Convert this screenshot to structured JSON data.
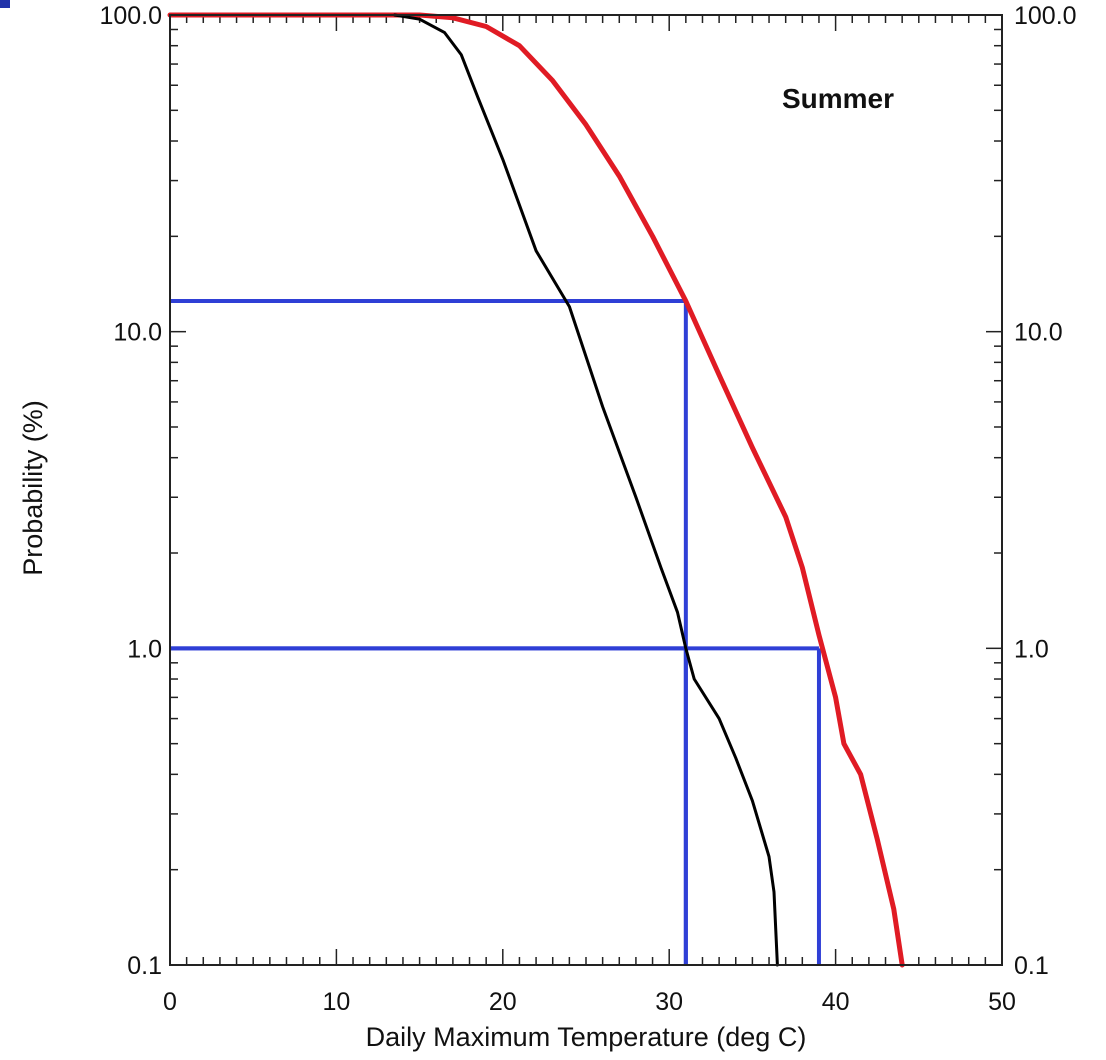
{
  "chart_data": {
    "type": "line",
    "title": "",
    "xlabel": "Daily Maximum Temperature (deg C)",
    "ylabel": "Probability (%)",
    "annotation": "Summer",
    "xlim": [
      0,
      50
    ],
    "ylim": [
      0.1,
      100
    ],
    "yscale": "log",
    "x_ticks": [
      0,
      10,
      20,
      30,
      40,
      50
    ],
    "x_tick_labels": [
      "0",
      "10",
      "20",
      "30",
      "40",
      "50"
    ],
    "y_ticks": [
      0.1,
      1,
      10,
      100
    ],
    "y_tick_labels": [
      "0.1",
      "1.0",
      "10.0",
      "100.0"
    ],
    "y_tick_labels_right": [
      "0.1",
      "1.0",
      "10.0",
      "100.0"
    ],
    "grid": false,
    "legend": "none",
    "series": [
      {
        "color": "#e01b24",
        "points": [
          [
            0,
            100
          ],
          [
            15,
            100
          ],
          [
            17,
            98
          ],
          [
            19,
            92
          ],
          [
            21,
            80
          ],
          [
            23,
            62
          ],
          [
            25,
            45
          ],
          [
            27,
            31
          ],
          [
            29,
            20
          ],
          [
            31,
            12.5
          ],
          [
            33,
            7.3
          ],
          [
            35,
            4.3
          ],
          [
            37,
            2.6
          ],
          [
            38,
            1.8
          ],
          [
            39,
            1.1
          ],
          [
            40,
            0.7
          ],
          [
            40.5,
            0.5
          ],
          [
            41.5,
            0.4
          ],
          [
            42.5,
            0.25
          ],
          [
            43.5,
            0.15
          ],
          [
            44,
            0.1
          ]
        ]
      },
      {
        "color": "#000000",
        "points": [
          [
            13.5,
            100
          ],
          [
            15,
            97
          ],
          [
            16.5,
            88
          ],
          [
            17.5,
            75
          ],
          [
            18.5,
            55
          ],
          [
            20,
            35
          ],
          [
            22,
            18
          ],
          [
            24,
            12
          ],
          [
            26,
            5.8
          ],
          [
            28,
            3
          ],
          [
            29.5,
            1.8
          ],
          [
            30.5,
            1.3
          ],
          [
            31,
            1.0
          ],
          [
            31.5,
            0.8
          ],
          [
            33,
            0.6
          ],
          [
            34,
            0.45
          ],
          [
            35,
            0.33
          ],
          [
            36,
            0.22
          ],
          [
            36.3,
            0.17
          ],
          [
            36.5,
            0.1
          ]
        ]
      }
    ],
    "reference_lines": [
      {
        "color": "#2f3fd6",
        "x": 31,
        "y": 12.5
      },
      {
        "color": "#2f3fd6",
        "x": 31,
        "y": 1.0
      },
      {
        "color": "#2f3fd6",
        "x": 39,
        "y": 1.0
      }
    ]
  }
}
